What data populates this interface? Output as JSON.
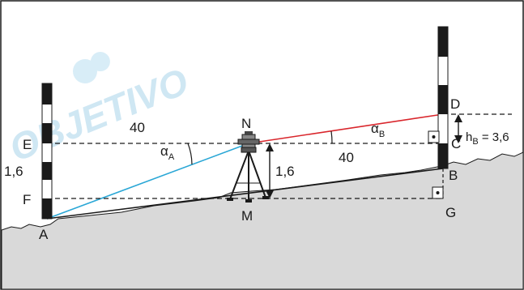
{
  "watermark": {
    "text": "OBJETIVO",
    "color": "#cfe7f3"
  },
  "points": {
    "A": "A",
    "B": "B",
    "C": "C",
    "D": "D",
    "E": "E",
    "F": "F",
    "G": "G",
    "M": "M",
    "N": "N"
  },
  "labels": {
    "dist_left": "40",
    "dist_right": "40",
    "height_left": "1,6",
    "height_instrument": "1,6",
    "alpha_A_base": "α",
    "alpha_A_sub": "A",
    "alpha_B_base": "α",
    "alpha_B_sub": "B",
    "h_B_base": "h",
    "h_B_sub": "B",
    "h_B_value": " = 3,6"
  },
  "colors": {
    "sight_A": "#2aa7d6",
    "sight_D": "#d9262c",
    "ground": "#d9d9d9",
    "outline": "#1a1a1a"
  }
}
